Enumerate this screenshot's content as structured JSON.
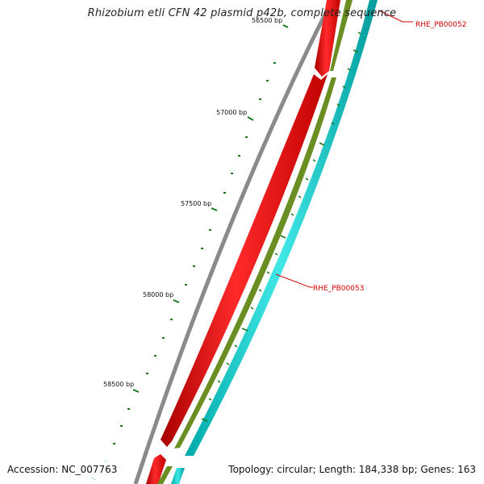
{
  "title": "Rhizobium etli CFN 42 plasmid p42b, complete sequence",
  "accession": "Accession: NC_007763",
  "summary": "Topology: circular; Length: 184,338 bp; Genes: 163",
  "tick_labels": [
    "56500 bp",
    "57000 bp",
    "57500 bp",
    "58000 bp",
    "58500 bp"
  ],
  "feature_labels": [
    "RHE_PB00052",
    "RHE_PB00053"
  ],
  "colors": {
    "backbone": "#8a8a8a",
    "cds_forward": "#ff0000",
    "gene_forward": "#6b8e23",
    "cds_reverse": "#00c8c8",
    "tick": "#1a7a1a",
    "label_red": "#d40000"
  }
}
